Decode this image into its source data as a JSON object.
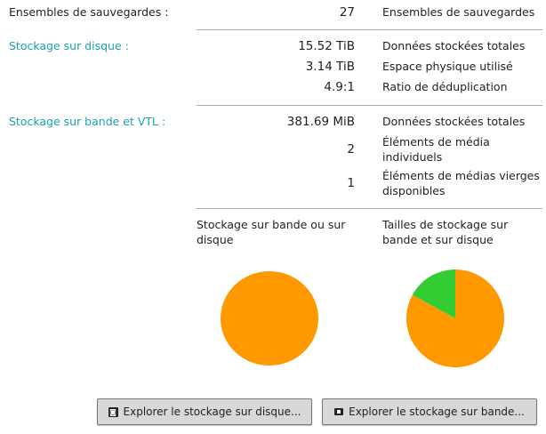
{
  "backup_sets": {
    "label": "Ensembles de sauvegardes :",
    "value": "27",
    "desc": "Ensembles de sauvegardes"
  },
  "disk": {
    "label": "Stockage sur disque :",
    "rows": [
      {
        "value": "15.52 TiB",
        "desc": "Données stockées totales"
      },
      {
        "value": "3.14 TiB",
        "desc": "Espace physique utilisé"
      },
      {
        "value": "4.9:1",
        "desc": "Ratio de déduplication"
      }
    ]
  },
  "tape": {
    "label": "Stockage sur bande et VTL :",
    "rows": [
      {
        "value": "381.69 MiB",
        "desc": "Données stockées totales"
      },
      {
        "value": "2",
        "desc": "Éléments de média individuels"
      },
      {
        "value": "1",
        "desc": "Éléments de médias vierges disponibles"
      }
    ]
  },
  "colors": {
    "accent": "#1a9fb5",
    "orange": "#ff9900",
    "green": "#33cc33"
  },
  "chart_data": [
    {
      "type": "pie",
      "title": "Stockage sur bande ou sur disque",
      "values": [
        100,
        0
      ],
      "colors": [
        "#ff9900",
        "#33cc33"
      ]
    },
    {
      "type": "pie",
      "title": "Tailles de stockage sur bande et sur disque",
      "values": [
        83,
        17
      ],
      "colors": [
        "#ff9900",
        "#33cc33"
      ]
    }
  ],
  "buttons": {
    "disk": {
      "label": "Explorer le stockage sur disque...",
      "icon": "hard-disk-icon"
    },
    "tape": {
      "label": "Explorer le stockage sur bande...",
      "icon": "tape-icon"
    }
  }
}
